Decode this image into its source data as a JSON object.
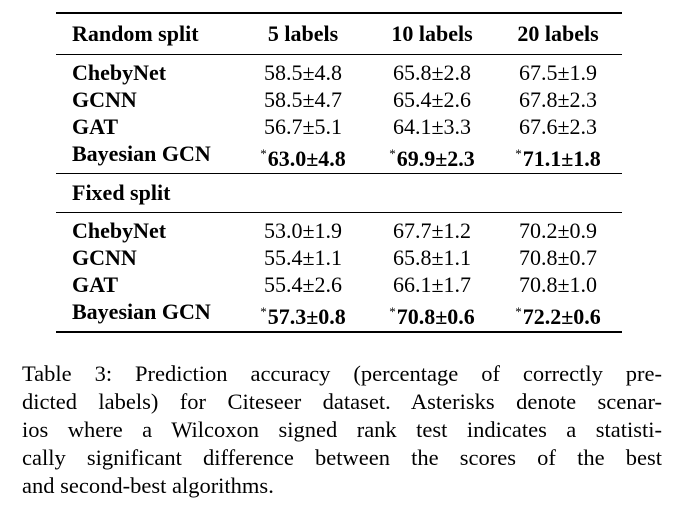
{
  "table": {
    "header": {
      "col0": "Random split",
      "col1": "5 labels",
      "col2": "10 labels",
      "col3": "20 labels"
    },
    "random_rows": [
      {
        "name": "ChebyNet",
        "v1": "58.5±4.8",
        "v2": "65.8±2.8",
        "v3": "67.5±1.9"
      },
      {
        "name": "GCNN",
        "v1": "58.5±4.7",
        "v2": "65.4±2.6",
        "v3": "67.8±2.3"
      },
      {
        "name": "GAT",
        "v1": "56.7±5.1",
        "v2": "64.1±3.3",
        "v3": "67.6±2.3"
      },
      {
        "name": "Bayesian GCN",
        "v1": "63.0±4.8",
        "v2": "69.9±2.3",
        "v3": "71.1±1.8",
        "star": "*"
      }
    ],
    "fixed_section_label": "Fixed split",
    "fixed_rows": [
      {
        "name": "ChebyNet",
        "v1": "53.0±1.9",
        "v2": "67.7±1.2",
        "v3": "70.2±0.9"
      },
      {
        "name": "GCNN",
        "v1": "55.4±1.1",
        "v2": "65.8±1.1",
        "v3": "70.8±0.7"
      },
      {
        "name": "GAT",
        "v1": "55.4±2.6",
        "v2": "66.1±1.7",
        "v3": "70.8±1.0"
      },
      {
        "name": "Bayesian GCN",
        "v1": "57.3±0.8",
        "v2": "70.8±0.6",
        "v3": "72.2±0.6",
        "star": "*"
      }
    ]
  },
  "caption": {
    "lines": [
      "Table 3: Prediction accuracy (percentage of correctly pre-",
      "dicted labels) for Citeseer dataset. Asterisks denote scenar-",
      "ios where a Wilcoxon signed rank test indicates a statisti-",
      "cally significant difference between the scores of the best",
      "and second-best algorithms."
    ]
  }
}
